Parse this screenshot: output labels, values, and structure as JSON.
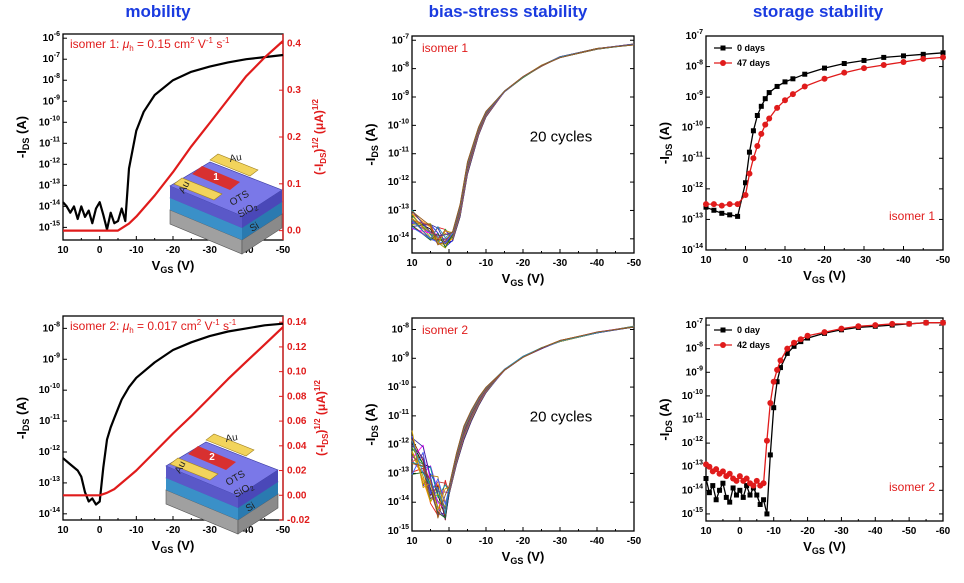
{
  "column_titles": [
    "mobility",
    "bias-stress stability",
    "storage stability"
  ],
  "colors": {
    "title": "#1a3be0",
    "black": "#000000",
    "red": "#e01b1b",
    "au": "#f2d45c",
    "channel": "#5a5ad8",
    "ots": "#7a78e8",
    "sio2": "#5ab0e8",
    "si": "#c8c8c8"
  },
  "device_labels": {
    "au": "Au",
    "ots": "OTS",
    "sio2": "SiO",
    "sio2_sub": "2",
    "si": "Si"
  },
  "chart_data": [
    {
      "id": "mobility_1",
      "type": "line",
      "x_label": "V",
      "x_label_sub": "GS",
      "x_label_unit": " (V)",
      "y_label": "-I",
      "y_label_sub": "DS",
      "y_label_unit": " (A)",
      "y2_label": "(-I",
      "y2_label_sub": "DS",
      "y2_label_unit": ")",
      "y2_label_sup": "1/2",
      "y2_label_unit2": " (μA)",
      "y2_label_sup2": "1/2",
      "annotation": {
        "prefix": "isomer 1: ",
        "mu": "μ",
        "mu_sub": "h",
        "value": " = 0.15 cm",
        "exp1": "2",
        "mid": " V",
        "exp2": "-1",
        "tail": " s",
        "exp3": "-1"
      },
      "device_number": "1",
      "xlim": [
        10,
        -50
      ],
      "x_ticks": [
        "10",
        "0",
        "-10",
        "-20",
        "-30",
        "-40",
        "-50"
      ],
      "ylog": [
        -15.6,
        -5.8
      ],
      "y_ticks": [
        -6,
        -7,
        -8,
        -9,
        -10,
        -11,
        -12,
        -13,
        -14,
        -15
      ],
      "y2lim": [
        -0.02,
        0.42
      ],
      "y2_ticks": [
        "0.0",
        "0.1",
        "0.2",
        "0.3",
        "0.4"
      ],
      "series": [
        {
          "axis": "left",
          "color": "#000000",
          "x": [
            10,
            9,
            8,
            7,
            6,
            5,
            4,
            3,
            2,
            1,
            0,
            -1,
            -2,
            -3,
            -4,
            -5,
            -6,
            -7,
            -8,
            -10,
            -12,
            -15,
            -20,
            -25,
            -30,
            -35,
            -40,
            -45,
            -50
          ],
          "y": [
            -13.8,
            -14.0,
            -14.3,
            -14.0,
            -14.6,
            -14.0,
            -14.5,
            -14.2,
            -14.8,
            -14.1,
            -13.8,
            -14.4,
            -15.1,
            -14.3,
            -14.8,
            -14.7,
            -14.1,
            -14.7,
            -12.2,
            -10.4,
            -9.5,
            -8.7,
            -8.0,
            -7.6,
            -7.35,
            -7.15,
            -7.0,
            -6.9,
            -6.8
          ]
        },
        {
          "axis": "right",
          "color": "#e01b1b",
          "x": [
            10,
            0,
            -5,
            -8,
            -10,
            -15,
            -20,
            -25,
            -30,
            -35,
            -40,
            -45,
            -50
          ],
          "y": [
            0.0,
            0.0,
            0.0,
            0.015,
            0.03,
            0.075,
            0.125,
            0.18,
            0.23,
            0.28,
            0.33,
            0.37,
            0.405
          ]
        }
      ]
    },
    {
      "id": "bias_1",
      "type": "line",
      "x_label": "V",
      "x_label_sub": "GS",
      "x_label_unit": " (V)",
      "y_label": "-I",
      "y_label_sub": "DS",
      "y_label_unit": " (A)",
      "annotation_tl": "isomer 1",
      "annotation_center": "20 cycles",
      "xlim": [
        10,
        -50
      ],
      "x_ticks": [
        "10",
        "0",
        "-10",
        "-20",
        "-30",
        "-40",
        "-50"
      ],
      "ylog": [
        -14.5,
        -6.85
      ],
      "y_ticks": [
        -7,
        -8,
        -9,
        -10,
        -11,
        -12,
        -13,
        -14
      ],
      "series_colors": [
        "#000000",
        "#1a1aff",
        "#e01b1b",
        "#1aa01a",
        "#8a2be2",
        "#ff8c00",
        "#00a0a0",
        "#b8860b",
        "#7a1a1a",
        "#ff00ff",
        "#3030a0",
        "#a0a000",
        "#606060",
        "#1a6a1a",
        "#c04040",
        "#4060ff",
        "#d0a000",
        "#5a2a8a",
        "#2a8ab0",
        "#9a5a1a"
      ],
      "base_curve": {
        "x": [
          10,
          5,
          3,
          1,
          -1,
          -3,
          -5,
          -8,
          -10,
          -15,
          -20,
          -25,
          -30,
          -40,
          -50
        ],
        "y": [
          -13.3,
          -13.7,
          -13.9,
          -14.0,
          -13.9,
          -13.0,
          -11.5,
          -10.2,
          -9.6,
          -8.8,
          -8.3,
          -7.9,
          -7.6,
          -7.3,
          -7.15
        ]
      }
    },
    {
      "id": "storage_1",
      "type": "line",
      "x_label": "V",
      "x_label_sub": "GS",
      "x_label_unit": " (V)",
      "y_label": "-I",
      "y_label_sub": "DS",
      "y_label_unit": " (A)",
      "annotation_br": "isomer 1",
      "xlim": [
        10,
        -50
      ],
      "x_ticks": [
        "10",
        "0",
        "-10",
        "-20",
        "-30",
        "-40",
        "-50"
      ],
      "ylog": [
        -14,
        -7
      ],
      "y_ticks": [
        -7,
        -8,
        -9,
        -10,
        -11,
        -12,
        -13,
        -14
      ],
      "legend_position": "top-left",
      "series": [
        {
          "name": "0 days",
          "color": "#000000",
          "marker": "square",
          "x": [
            10,
            8,
            6,
            4,
            2,
            0,
            -1,
            -2,
            -3,
            -4,
            -5,
            -6,
            -8,
            -10,
            -12,
            -15,
            -20,
            -25,
            -30,
            -35,
            -40,
            -45,
            -50
          ],
          "y": [
            -12.6,
            -12.7,
            -12.8,
            -12.85,
            -12.9,
            -11.8,
            -10.8,
            -10.1,
            -9.6,
            -9.3,
            -9.05,
            -8.85,
            -8.65,
            -8.5,
            -8.4,
            -8.25,
            -8.05,
            -7.9,
            -7.8,
            -7.7,
            -7.65,
            -7.6,
            -7.55
          ]
        },
        {
          "name": "47 days",
          "color": "#e01b1b",
          "marker": "circle",
          "x": [
            10,
            8,
            6,
            4,
            2,
            0,
            -1,
            -2,
            -3,
            -4,
            -5,
            -6,
            -8,
            -10,
            -12,
            -15,
            -20,
            -25,
            -30,
            -35,
            -40,
            -45,
            -50
          ],
          "y": [
            -12.5,
            -12.5,
            -12.55,
            -12.5,
            -12.5,
            -12.2,
            -11.5,
            -11.0,
            -10.6,
            -10.2,
            -9.9,
            -9.7,
            -9.35,
            -9.1,
            -8.9,
            -8.65,
            -8.4,
            -8.2,
            -8.05,
            -7.95,
            -7.85,
            -7.75,
            -7.7
          ]
        }
      ]
    },
    {
      "id": "mobility_2",
      "type": "line",
      "x_label": "V",
      "x_label_sub": "GS",
      "x_label_unit": " (V)",
      "y_label": "-I",
      "y_label_sub": "DS",
      "y_label_unit": " (A)",
      "y2_label": "(-I",
      "y2_label_sub": "DS",
      "y2_label_unit": ")",
      "y2_label_sup": "1/2",
      "y2_label_unit2": " (μA)",
      "y2_label_sup2": "1/2",
      "annotation": {
        "prefix": "isomer 2: ",
        "mu": "μ",
        "mu_sub": "h",
        "value": " = 0.017 cm",
        "exp1": "2",
        "mid": " V",
        "exp2": "-1",
        "tail": " s",
        "exp3": "-1"
      },
      "device_number": "2",
      "xlim": [
        10,
        -50
      ],
      "x_ticks": [
        "10",
        "0",
        "-10",
        "-20",
        "-30",
        "-40",
        "-50"
      ],
      "ylog": [
        -14.2,
        -7.6
      ],
      "y_ticks": [
        -8,
        -9,
        -10,
        -11,
        -12,
        -13,
        -14
      ],
      "y2lim": [
        -0.02,
        0.145
      ],
      "y2_ticks": [
        "-0.02",
        "0.00",
        "0.02",
        "0.04",
        "0.06",
        "0.08",
        "0.10",
        "0.12",
        "0.14"
      ],
      "series": [
        {
          "axis": "left",
          "color": "#000000",
          "x": [
            10,
            8,
            6,
            5,
            4,
            3,
            2,
            1,
            0,
            -1,
            -2,
            -3,
            -4,
            -5,
            -6,
            -8,
            -10,
            -15,
            -20,
            -25,
            -30,
            -35,
            -40,
            -45,
            -50
          ],
          "y": [
            -12.2,
            -12.4,
            -12.6,
            -12.8,
            -13.3,
            -13.6,
            -13.5,
            -13.7,
            -13.6,
            -12.5,
            -11.6,
            -11.2,
            -10.9,
            -10.6,
            -10.3,
            -9.9,
            -9.6,
            -9.1,
            -8.7,
            -8.45,
            -8.25,
            -8.1,
            -8.0,
            -7.9,
            -7.85
          ]
        },
        {
          "axis": "right",
          "color": "#e01b1b",
          "x": [
            10,
            2,
            0,
            -2,
            -4,
            -6,
            -10,
            -15,
            -20,
            -25,
            -30,
            -35,
            -40,
            -45,
            -50
          ],
          "y": [
            0.0,
            0.0,
            0.0,
            0.002,
            0.005,
            0.01,
            0.02,
            0.035,
            0.05,
            0.064,
            0.079,
            0.094,
            0.108,
            0.122,
            0.136
          ]
        }
      ]
    },
    {
      "id": "bias_2",
      "type": "line",
      "x_label": "V",
      "x_label_sub": "GS",
      "x_label_unit": " (V)",
      "y_label": "-I",
      "y_label_sub": "DS",
      "y_label_unit": " (A)",
      "annotation_tl": "isomer 2",
      "annotation_center": "20 cycles",
      "xlim": [
        10,
        -50
      ],
      "x_ticks": [
        "10",
        "0",
        "-10",
        "-20",
        "-30",
        "-40",
        "-50"
      ],
      "ylog": [
        -15,
        -7.6
      ],
      "y_ticks": [
        -8,
        -9,
        -10,
        -11,
        -12,
        -13,
        -14,
        -15
      ],
      "series_colors": [
        "#000000",
        "#1a1aff",
        "#e01b1b",
        "#1aa01a",
        "#8a2be2",
        "#ff8c00",
        "#00a0a0",
        "#b8860b",
        "#7a1a1a",
        "#ff00ff",
        "#3030a0",
        "#a0a000",
        "#606060",
        "#1a6a1a",
        "#c04040",
        "#4060ff",
        "#d0a000",
        "#5a2a8a",
        "#2a8ab0",
        "#9a5a1a"
      ],
      "base_curve": {
        "x": [
          10,
          7,
          5,
          3,
          1,
          0,
          -2,
          -4,
          -6,
          -8,
          -10,
          -15,
          -20,
          -25,
          -30,
          -40,
          -50
        ],
        "y": [
          -12.3,
          -12.8,
          -13.4,
          -13.8,
          -13.9,
          -13.6,
          -12.5,
          -11.6,
          -11.0,
          -10.5,
          -10.1,
          -9.4,
          -8.95,
          -8.65,
          -8.4,
          -8.1,
          -7.9
        ]
      }
    },
    {
      "id": "storage_2",
      "type": "line",
      "x_label": "V",
      "x_label_sub": "GS",
      "x_label_unit": " (V)",
      "y_label": "-I",
      "y_label_sub": "DS",
      "y_label_unit": " (A)",
      "annotation_br": "isomer 2",
      "xlim": [
        10,
        -60
      ],
      "x_ticks": [
        "10",
        "0",
        "-10",
        "-20",
        "-30",
        "-40",
        "-50",
        "-60"
      ],
      "ylog": [
        -15.3,
        -6.7
      ],
      "y_ticks": [
        -7,
        -8,
        -9,
        -10,
        -11,
        -12,
        -13,
        -14,
        -15
      ],
      "legend_position": "top-left",
      "series": [
        {
          "name": "0 day",
          "color": "#000000",
          "marker": "square",
          "x": [
            10,
            9,
            8,
            7,
            6,
            5,
            4,
            3,
            2,
            1,
            0,
            -1,
            -2,
            -3,
            -4,
            -5,
            -6,
            -7,
            -8,
            -9,
            -10,
            -11,
            -12,
            -14,
            -16,
            -18,
            -20,
            -25,
            -30,
            -35,
            -40,
            -45,
            -50,
            -55,
            -60
          ],
          "y": [
            -13.5,
            -14.1,
            -13.8,
            -14.4,
            -14.0,
            -13.7,
            -14.3,
            -14.5,
            -13.9,
            -14.2,
            -14.0,
            -14.3,
            -13.8,
            -14.2,
            -13.9,
            -14.2,
            -14.6,
            -14.4,
            -15.0,
            -12.5,
            -10.5,
            -9.4,
            -8.8,
            -8.2,
            -7.9,
            -7.7,
            -7.55,
            -7.35,
            -7.2,
            -7.1,
            -7.05,
            -7.0,
            -6.95,
            -6.9,
            -6.9
          ]
        },
        {
          "name": "42 days",
          "color": "#e01b1b",
          "marker": "circle",
          "x": [
            10,
            9,
            8,
            7,
            6,
            5,
            4,
            3,
            2,
            1,
            0,
            -1,
            -2,
            -3,
            -4,
            -5,
            -6,
            -7,
            -8,
            -9,
            -10,
            -11,
            -12,
            -14,
            -16,
            -18,
            -20,
            -25,
            -30,
            -35,
            -40,
            -45,
            -50,
            -55,
            -60
          ],
          "y": [
            -12.9,
            -13.0,
            -13.2,
            -13.1,
            -13.3,
            -13.2,
            -13.4,
            -13.3,
            -13.5,
            -13.6,
            -13.4,
            -13.6,
            -13.5,
            -13.7,
            -13.8,
            -13.6,
            -13.8,
            -13.7,
            -11.9,
            -10.3,
            -9.4,
            -8.9,
            -8.5,
            -8.0,
            -7.75,
            -7.6,
            -7.45,
            -7.3,
            -7.15,
            -7.05,
            -7.0,
            -6.95,
            -6.95,
            -6.9,
            -6.9
          ]
        }
      ]
    }
  ]
}
